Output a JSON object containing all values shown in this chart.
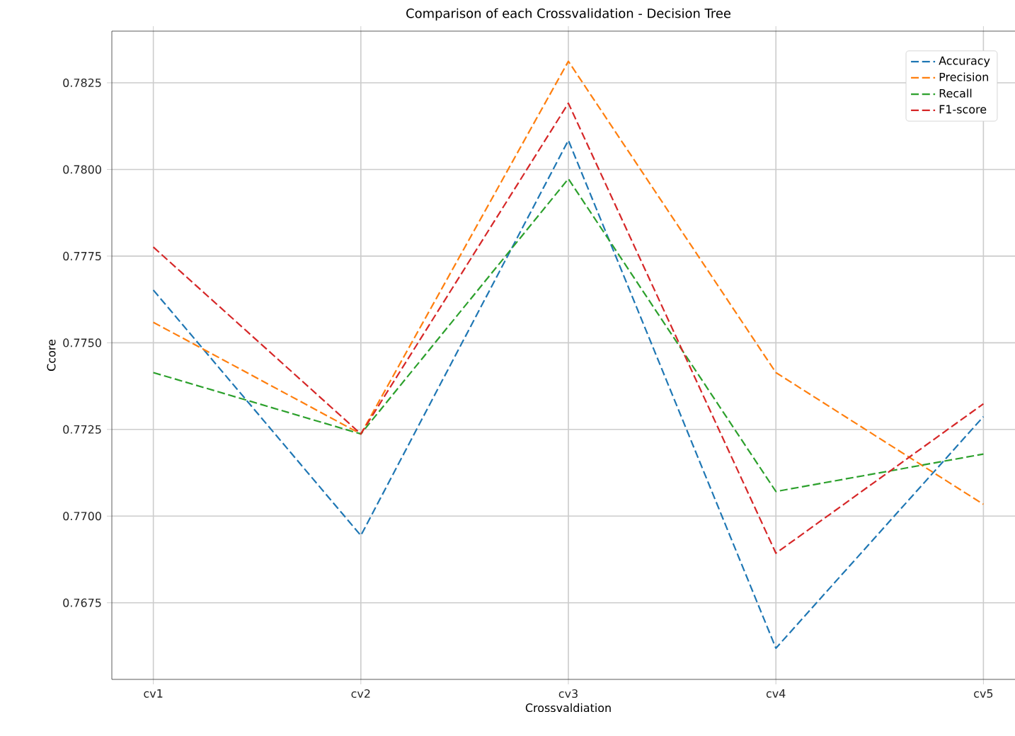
{
  "chart_data": {
    "type": "line",
    "title": "Comparison of each Crossvalidation - Decision Tree",
    "xlabel": "Crossvaldiation",
    "ylabel": "Ccore",
    "categories": [
      "cv1",
      "cv2",
      "cv3",
      "cv4",
      "cv5"
    ],
    "series": [
      {
        "name": "Accuracy",
        "color": "#1f77b4",
        "values": [
          0.77652,
          0.76944,
          0.78084,
          0.76619,
          0.77287
        ]
      },
      {
        "name": "Precision",
        "color": "#ff7f0e",
        "values": [
          0.77559,
          0.77237,
          0.78312,
          0.77414,
          0.77034
        ]
      },
      {
        "name": "Recall",
        "color": "#2ca02c",
        "values": [
          0.77414,
          0.77237,
          0.77973,
          0.77071,
          0.77179
        ]
      },
      {
        "name": "F1-score",
        "color": "#d62728",
        "values": [
          0.77776,
          0.77237,
          0.78191,
          0.76893,
          0.77324
        ]
      }
    ],
    "ylim": [
      0.76529,
      0.78399
    ],
    "yticks": [
      0.7675,
      {
        "value": 0.77,
        "label": "0.7700"
      },
      0.7725,
      {
        "value": 0.775,
        "label": "0.7750"
      },
      0.7775,
      {
        "value": 0.78,
        "label": "0.7800"
      },
      0.7825
    ],
    "grid": true,
    "legend": "top right",
    "line_style": "dashed",
    "marker": "none"
  }
}
